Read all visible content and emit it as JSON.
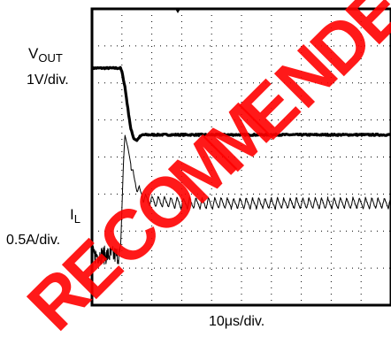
{
  "chart_data": {
    "type": "line",
    "title": "",
    "x_scale_label": "10μs/div.",
    "x_divisions": 10,
    "y_divisions": 8,
    "grid": true,
    "time_unit": "μs",
    "series": [
      {
        "name": "V_OUT",
        "label_main": "V",
        "label_sub": "OUT",
        "scale_label": "1V/div.",
        "color": "#000000",
        "x": [
          0,
          9.5,
          10,
          11,
          12,
          13,
          14,
          15,
          16,
          17,
          18,
          20,
          25,
          30,
          40,
          50,
          60,
          70,
          80,
          90,
          100
        ],
        "y": [
          6.4,
          6.4,
          6.3,
          5.9,
          5.3,
          4.75,
          4.5,
          4.45,
          4.55,
          4.6,
          4.6,
          4.6,
          4.6,
          4.6,
          4.6,
          4.6,
          4.6,
          4.6,
          4.6,
          4.6,
          4.6
        ]
      },
      {
        "name": "I_L",
        "label_main": "I",
        "label_sub": "L",
        "scale_label": "0.5A/div.",
        "color": "#000000",
        "x": [
          0,
          5,
          9,
          9.5,
          10,
          10.5,
          11,
          12,
          13,
          14,
          15,
          16,
          17,
          18,
          20,
          25,
          30,
          40,
          50,
          60,
          70,
          80,
          90,
          100
        ],
        "y": [
          1.35,
          1.35,
          1.35,
          1.4,
          2.6,
          3.8,
          4.6,
          4.25,
          3.8,
          3.4,
          3.2,
          3.05,
          2.95,
          2.85,
          2.8,
          2.78,
          2.75,
          2.75,
          2.75,
          2.75,
          2.75,
          2.75,
          2.75,
          2.75
        ],
        "noise_before_step": 0.25,
        "ripple_after_step": 0.3
      }
    ]
  },
  "watermark": {
    "text": "RECOMMENDED",
    "color": "#ff0000"
  }
}
